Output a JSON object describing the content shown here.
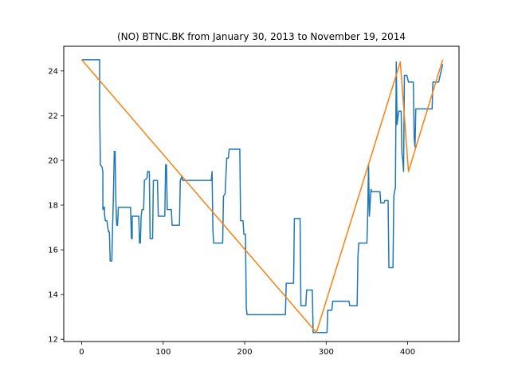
{
  "chart_data": {
    "type": "line",
    "title": "(NO) BTNC.BK from January 30, 2013 to November 19, 2014",
    "xlabel": "",
    "ylabel": "",
    "xlim": [
      -22,
      463
    ],
    "ylim": [
      11.9,
      25.1
    ],
    "xticks": [
      0,
      100,
      200,
      300,
      400
    ],
    "yticks": [
      12,
      14,
      16,
      18,
      20,
      22,
      24
    ],
    "grid": false,
    "series": [
      {
        "color": "#1f77b4",
        "points": [
          [
            0,
            24.5
          ],
          [
            22,
            24.5
          ],
          [
            22,
            22.3
          ],
          [
            23,
            19.8
          ],
          [
            25,
            19.7
          ],
          [
            26,
            19.5
          ],
          [
            26,
            17.8
          ],
          [
            27,
            17.9
          ],
          [
            28,
            17.9
          ],
          [
            28,
            17.6
          ],
          [
            29,
            17.3
          ],
          [
            31,
            17.3
          ],
          [
            32,
            17.0
          ],
          [
            33,
            16.8
          ],
          [
            34,
            16.8
          ],
          [
            35,
            15.5
          ],
          [
            37,
            15.5
          ],
          [
            38,
            17.1
          ],
          [
            39,
            18.5
          ],
          [
            40,
            20.4
          ],
          [
            41,
            20.4
          ],
          [
            42,
            18.1
          ],
          [
            43,
            17.1
          ],
          [
            44,
            17.1
          ],
          [
            45,
            17.9
          ],
          [
            60,
            17.9
          ],
          [
            61,
            16.5
          ],
          [
            62,
            16.5
          ],
          [
            62,
            17.5
          ],
          [
            70,
            17.5
          ],
          [
            71,
            16.3
          ],
          [
            72,
            16.3
          ],
          [
            73,
            17.5
          ],
          [
            74,
            17.8
          ],
          [
            76,
            17.8
          ],
          [
            77,
            19.1
          ],
          [
            80,
            19.2
          ],
          [
            81,
            19.5
          ],
          [
            83,
            19.5
          ],
          [
            84,
            16.5
          ],
          [
            87,
            16.5
          ],
          [
            88,
            19.1
          ],
          [
            93,
            19.1
          ],
          [
            94,
            17.5
          ],
          [
            102,
            17.5
          ],
          [
            103,
            19.8
          ],
          [
            104,
            19.8
          ],
          [
            105,
            17.8
          ],
          [
            110,
            17.8
          ],
          [
            111,
            17.1
          ],
          [
            120,
            17.1
          ],
          [
            121,
            19.1
          ],
          [
            123,
            19.3
          ],
          [
            124,
            19.1
          ],
          [
            159,
            19.1
          ],
          [
            160,
            19.5
          ],
          [
            161,
            16.9
          ],
          [
            162,
            16.3
          ],
          [
            173,
            16.3
          ],
          [
            174,
            18.4
          ],
          [
            176,
            18.5
          ],
          [
            178,
            20.1
          ],
          [
            180,
            20.1
          ],
          [
            181,
            20.5
          ],
          [
            194,
            20.5
          ],
          [
            195,
            17.3
          ],
          [
            198,
            17.3
          ],
          [
            199,
            16.7
          ],
          [
            201,
            16.7
          ],
          [
            202,
            13.4
          ],
          [
            203,
            13.1
          ],
          [
            250,
            13.1
          ],
          [
            251,
            14.5
          ],
          [
            260,
            14.5
          ],
          [
            261,
            17.4
          ],
          [
            268,
            17.4
          ],
          [
            269,
            13.5
          ],
          [
            275,
            13.5
          ],
          [
            276,
            14.2
          ],
          [
            283,
            14.2
          ],
          [
            284,
            12.3
          ],
          [
            301,
            12.3
          ],
          [
            302,
            13.3
          ],
          [
            307,
            13.3
          ],
          [
            308,
            13.7
          ],
          [
            328,
            13.7
          ],
          [
            329,
            13.5
          ],
          [
            338,
            13.5
          ],
          [
            339,
            15.7
          ],
          [
            340,
            16.3
          ],
          [
            350,
            16.3
          ],
          [
            351,
            17.6
          ],
          [
            352,
            19.8
          ],
          [
            353,
            17.5
          ],
          [
            355,
            18.7
          ],
          [
            356,
            18.6
          ],
          [
            366,
            18.6
          ],
          [
            367,
            18.1
          ],
          [
            371,
            18.1
          ],
          [
            372,
            18.2
          ],
          [
            376,
            18.2
          ],
          [
            377,
            15.2
          ],
          [
            382,
            15.2
          ],
          [
            383,
            18.4
          ],
          [
            385,
            18.8
          ],
          [
            386,
            24.4
          ],
          [
            387,
            21.6
          ],
          [
            389,
            22.2
          ],
          [
            392,
            22.2
          ],
          [
            393,
            20.3
          ],
          [
            394,
            20.0
          ],
          [
            395,
            19.5
          ],
          [
            396,
            23.8
          ],
          [
            399,
            23.8
          ],
          [
            401,
            23.5
          ],
          [
            407,
            23.5
          ],
          [
            408,
            21.0
          ],
          [
            409,
            20.6
          ],
          [
            410,
            22.3
          ],
          [
            430,
            22.3
          ],
          [
            431,
            23.5
          ],
          [
            438,
            23.5
          ],
          [
            443,
            24.3
          ]
        ]
      },
      {
        "color": "#ff7f0e",
        "points": [
          [
            0,
            24.5
          ],
          [
            288,
            12.3
          ],
          [
            391,
            24.4
          ],
          [
            401,
            19.5
          ],
          [
            443,
            24.5
          ]
        ]
      }
    ]
  }
}
